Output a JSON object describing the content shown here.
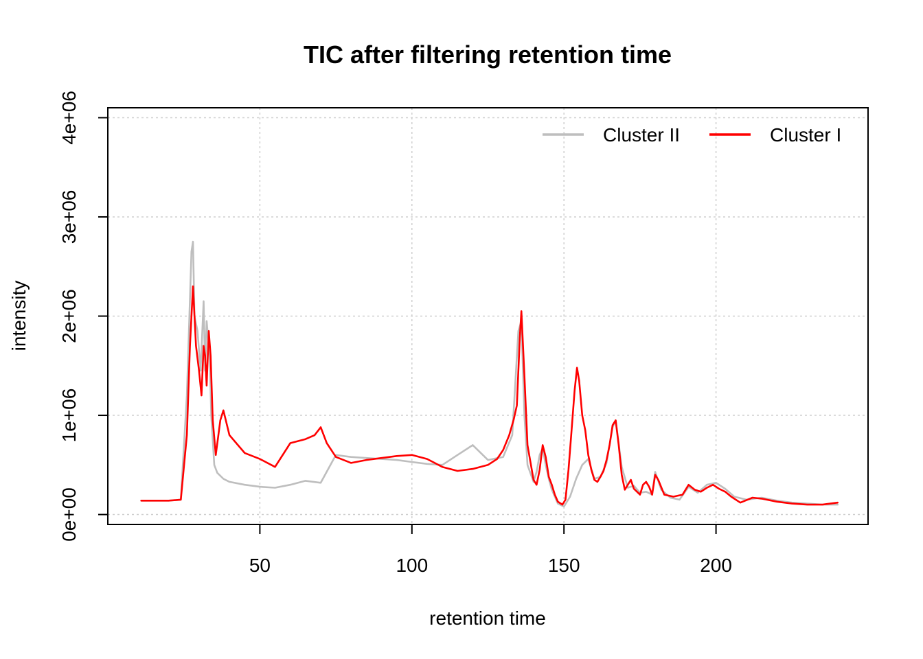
{
  "chart_data": {
    "type": "line",
    "title": "TIC after filtering retention time",
    "xlabel": "retention time",
    "ylabel": "intensity",
    "xlim": [
      0,
      250
    ],
    "ylim": [
      -100000,
      4100000
    ],
    "x_ticks": [
      50,
      100,
      150,
      200
    ],
    "x_tick_labels": [
      "50",
      "100",
      "150",
      "200"
    ],
    "y_ticks": [
      0,
      1000000,
      2000000,
      3000000,
      4000000
    ],
    "y_tick_labels": [
      "0e+00",
      "1e+06",
      "2e+06",
      "3e+06",
      "4e+06"
    ],
    "grid": true,
    "legend": {
      "position": "top-right",
      "entries": [
        {
          "label": "Cluster II",
          "color": "#BEBEBE"
        },
        {
          "label": "Cluster I",
          "color": "#FF0000"
        }
      ]
    },
    "series": [
      {
        "name": "Cluster II",
        "color": "#BEBEBE",
        "x": [
          11,
          20,
          24,
          26,
          27.5,
          28,
          28.5,
          29.5,
          30.5,
          31.5,
          32,
          32.5,
          33.5,
          34,
          35,
          36,
          38,
          40,
          45,
          50,
          55,
          60,
          65,
          70,
          75,
          80,
          85,
          90,
          95,
          100,
          105,
          110,
          115,
          120,
          125,
          130,
          133,
          135,
          136,
          137,
          138,
          140,
          141,
          142,
          143,
          144,
          145,
          146,
          148,
          150,
          152,
          154,
          156,
          158,
          160,
          162,
          164,
          166,
          167,
          169,
          171,
          173,
          175,
          177,
          179,
          180,
          182,
          185,
          188,
          191,
          194,
          197,
          200,
          203,
          206,
          210,
          215,
          220,
          225,
          230,
          235,
          240
        ],
        "y": [
          140000,
          140000,
          150000,
          1200000,
          2650000,
          2750000,
          2000000,
          1850000,
          1450000,
          2150000,
          1450000,
          1950000,
          1600000,
          1000000,
          500000,
          420000,
          360000,
          330000,
          300000,
          280000,
          270000,
          300000,
          340000,
          320000,
          600000,
          580000,
          570000,
          560000,
          550000,
          530000,
          510000,
          500000,
          600000,
          700000,
          550000,
          580000,
          800000,
          1850000,
          1950000,
          1000000,
          500000,
          330000,
          430000,
          600000,
          670000,
          500000,
          360000,
          250000,
          110000,
          80000,
          180000,
          360000,
          500000,
          560000,
          360000,
          380000,
          520000,
          880000,
          950000,
          480000,
          270000,
          290000,
          220000,
          230000,
          200000,
          430000,
          250000,
          170000,
          150000,
          280000,
          220000,
          300000,
          320000,
          260000,
          180000,
          150000,
          170000,
          140000,
          120000,
          110000,
          100000,
          100000
        ]
      },
      {
        "name": "Cluster I",
        "color": "#FF0000",
        "x": [
          11,
          20,
          24,
          26,
          27,
          28,
          29,
          30,
          30.8,
          31.5,
          32,
          32.5,
          33.2,
          33.8,
          34.5,
          35.5,
          37,
          38,
          40,
          45,
          50,
          55,
          60,
          65,
          68,
          70,
          72,
          75,
          80,
          85,
          90,
          95,
          100,
          105,
          110,
          115,
          120,
          125,
          128,
          130,
          132,
          133.5,
          134.5,
          135.5,
          136,
          137,
          138,
          140,
          141,
          142,
          143,
          144,
          145,
          146,
          147,
          148,
          149.5,
          150.5,
          151.5,
          152.5,
          153.5,
          154.3,
          155,
          156,
          157,
          158,
          159,
          160,
          161,
          162,
          163,
          164,
          165,
          166,
          167,
          168,
          169,
          170,
          171,
          172,
          173,
          175,
          176,
          177,
          178,
          179,
          180,
          181,
          183,
          186,
          189,
          191,
          193,
          195,
          197,
          199,
          201,
          203,
          205,
          208,
          212,
          215,
          220,
          225,
          230,
          235,
          240
        ],
        "y": [
          140000,
          140000,
          150000,
          800000,
          1700000,
          2300000,
          1700000,
          1450000,
          1200000,
          1700000,
          1600000,
          1300000,
          1850000,
          1600000,
          950000,
          600000,
          950000,
          1050000,
          800000,
          620000,
          560000,
          480000,
          720000,
          760000,
          800000,
          880000,
          720000,
          580000,
          520000,
          550000,
          570000,
          590000,
          600000,
          560000,
          480000,
          440000,
          460000,
          500000,
          560000,
          650000,
          800000,
          960000,
          1100000,
          1800000,
          2050000,
          1400000,
          700000,
          350000,
          300000,
          450000,
          700000,
          580000,
          380000,
          300000,
          200000,
          130000,
          100000,
          150000,
          450000,
          850000,
          1250000,
          1480000,
          1350000,
          1000000,
          850000,
          600000,
          450000,
          350000,
          330000,
          380000,
          440000,
          550000,
          700000,
          900000,
          950000,
          700000,
          400000,
          250000,
          300000,
          350000,
          260000,
          200000,
          300000,
          330000,
          280000,
          200000,
          400000,
          350000,
          200000,
          180000,
          200000,
          300000,
          250000,
          230000,
          270000,
          300000,
          260000,
          230000,
          180000,
          120000,
          170000,
          160000,
          130000,
          110000,
          100000,
          100000,
          120000
        ]
      }
    ]
  }
}
